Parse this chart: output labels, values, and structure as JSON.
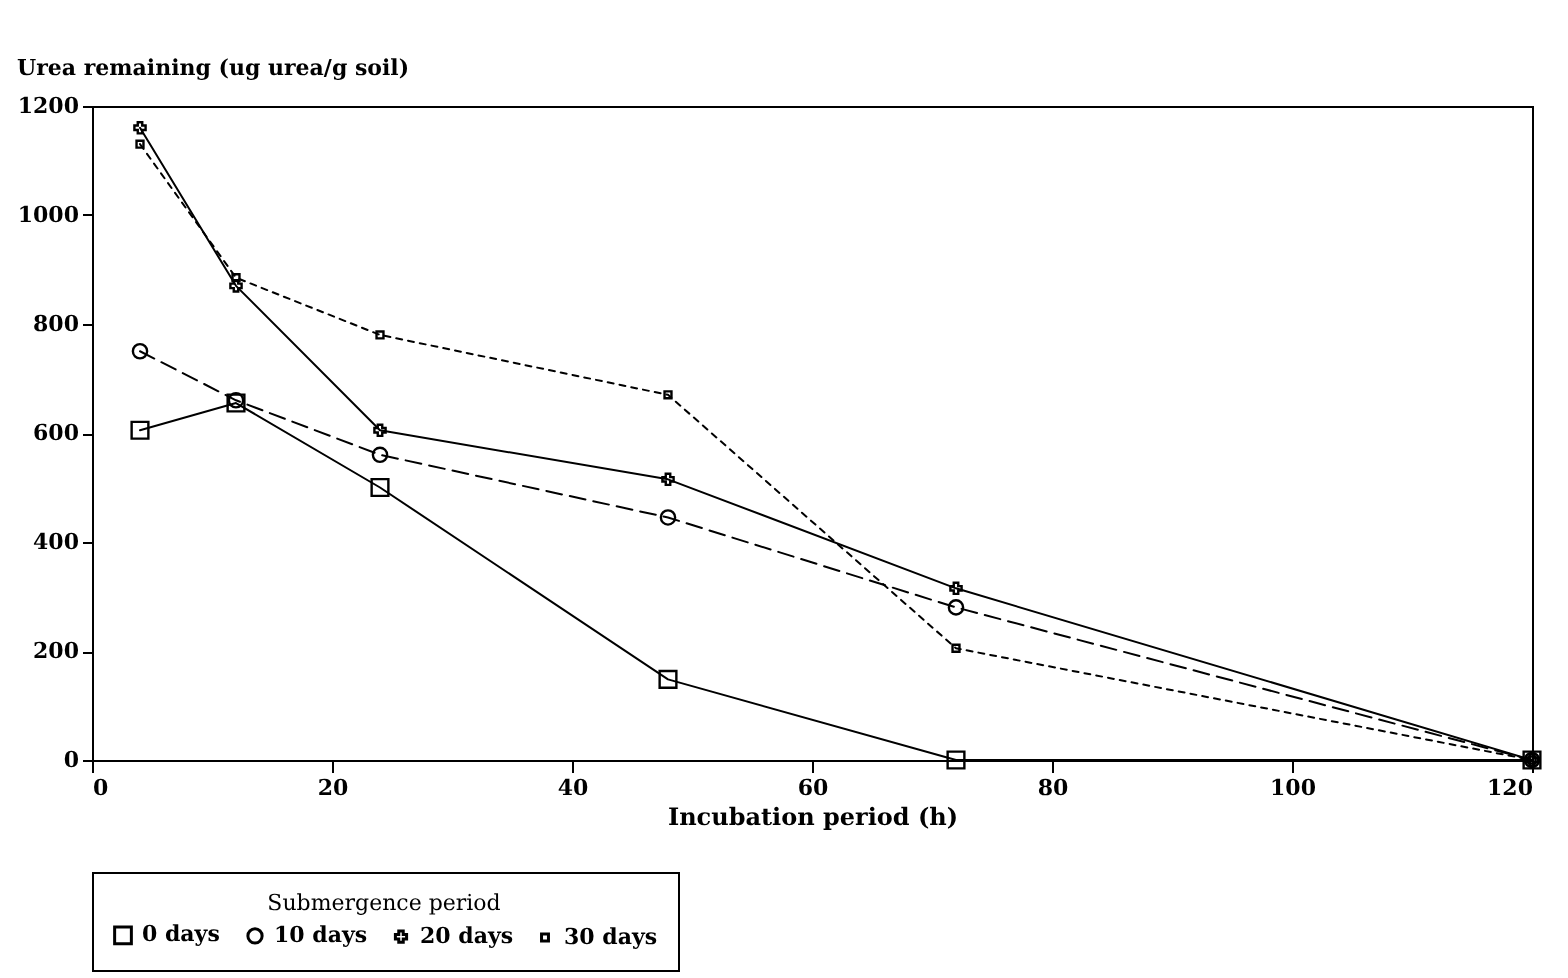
{
  "chart_data": {
    "type": "line",
    "xlabel": "Incubation period (h)",
    "ylabel": "Urea remaining (ug urea/g soil)",
    "legend_title": "Submergence period",
    "x": [
      4,
      12,
      24,
      48,
      72,
      120
    ],
    "series": [
      {
        "name": "0 days",
        "color": "#000000",
        "marker": "square",
        "line_style": "solid",
        "values": [
          605,
          655,
          500,
          148,
          0,
          0
        ]
      },
      {
        "name": "10 days",
        "color": "#000000",
        "marker": "circle",
        "line_style": "dashed",
        "values": [
          750,
          660,
          560,
          445,
          280,
          0
        ]
      },
      {
        "name": "20 days",
        "color": "#000000",
        "marker": "cross",
        "line_style": "solid",
        "values": [
          1160,
          870,
          605,
          515,
          315,
          0
        ]
      },
      {
        "name": "30 days",
        "color": "#000000",
        "marker": "square",
        "line_style": "dotted",
        "values": [
          1130,
          885,
          780,
          670,
          205,
          0
        ]
      }
    ],
    "xlim": [
      0,
      120
    ],
    "xticks": [
      0,
      20,
      40,
      60,
      80,
      100,
      120
    ],
    "ylim": [
      0,
      1200
    ],
    "yticks": [
      0,
      200,
      400,
      600,
      800,
      1000,
      1200
    ],
    "grid": false,
    "legend": "bottom"
  }
}
